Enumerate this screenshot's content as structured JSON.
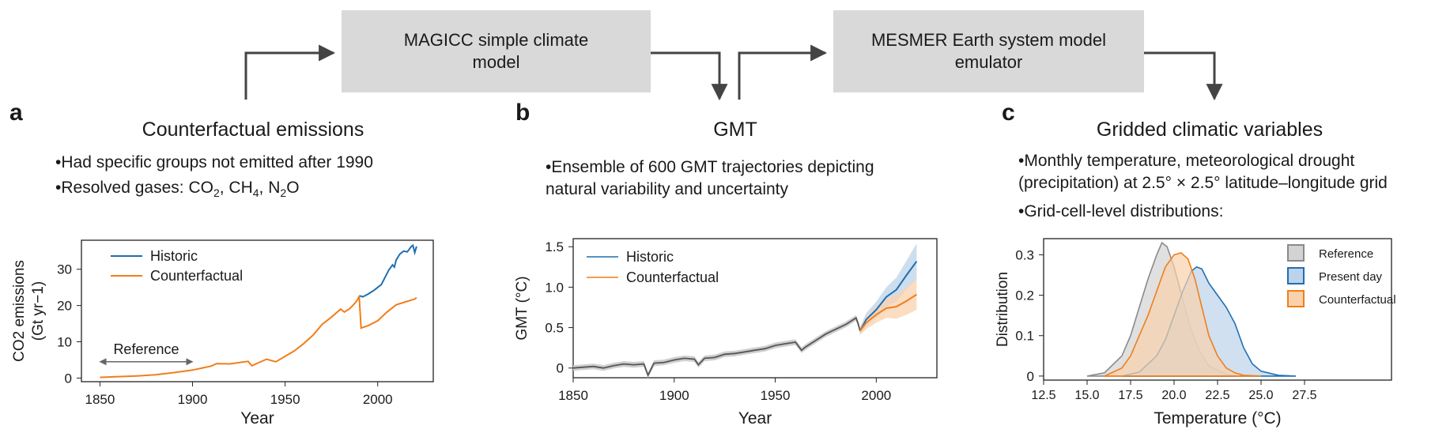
{
  "flow": {
    "box1": [
      "MAGICC simple climate",
      "model"
    ],
    "box2": [
      "MESMER Earth system model",
      "emulator"
    ]
  },
  "panel_a": {
    "letter": "a",
    "title": "Counterfactual emissions",
    "bullet1": "•Had specific groups not emitted after 1990",
    "bullet2_prefix": "•Resolved gases: CO",
    "bullet2_co2_sub": "2",
    "bullet2_mid1": ", CH",
    "bullet2_ch4_sub": "4",
    "bullet2_mid2": ", N",
    "bullet2_n2o_sub": "2",
    "bullet2_suffix": "O"
  },
  "panel_b": {
    "letter": "b",
    "title": "GMT",
    "bullet1": "•Ensemble of 600 GMT trajectories depicting",
    "bullet2": "natural variability and uncertainty"
  },
  "panel_c": {
    "letter": "c",
    "title": "Gridded climatic variables",
    "bullet1": "•Monthly temperature, meteorological drought",
    "bullet2": "(precipitation) at 2.5° × 2.5° latitude–longitude grid",
    "bullet3": "•Grid-cell-level distributions:"
  },
  "colors": {
    "historic": "#1f6fb2",
    "counterfactual": "#f07f1a",
    "reference": "#555555",
    "box": "#d9d9d9"
  },
  "chart_data": [
    {
      "id": "a",
      "type": "line",
      "title": "",
      "xlabel": "Year",
      "ylabel_line1": "CO2 emissions",
      "ylabel_line2": "(Gt yr−1)",
      "xlim": [
        1840,
        2030
      ],
      "ylim": [
        -1,
        38
      ],
      "xticks": [
        1850,
        1900,
        1950,
        2000
      ],
      "yticks": [
        0,
        10,
        20,
        30
      ],
      "annotation": "Reference",
      "reference_span": [
        1850,
        1900
      ],
      "series": [
        {
          "name": "Historic",
          "color": "#1f6fb2",
          "x": [
            1990,
            1992,
            1995,
            1998,
            2000,
            2002,
            2004,
            2006,
            2008,
            2009,
            2010,
            2012,
            2014,
            2016,
            2018,
            2019,
            2020,
            2021
          ],
          "y": [
            22.7,
            22.4,
            23.2,
            24.2,
            25.0,
            25.8,
            27.8,
            29.8,
            31.2,
            30.6,
            32.6,
            34.2,
            35.0,
            34.8,
            36.2,
            36.6,
            34.6,
            36.3
          ]
        },
        {
          "name": "Counterfactual",
          "color": "#f07f1a",
          "x": [
            1850,
            1860,
            1870,
            1880,
            1890,
            1900,
            1910,
            1913,
            1920,
            1930,
            1932,
            1940,
            1945,
            1950,
            1955,
            1960,
            1965,
            1970,
            1975,
            1980,
            1982,
            1985,
            1988,
            1989,
            1990,
            1991,
            1995,
            2000,
            2005,
            2010,
            2015,
            2020,
            2021
          ],
          "y": [
            0.2,
            0.4,
            0.6,
            0.9,
            1.5,
            2.2,
            3.3,
            4.0,
            3.9,
            4.6,
            3.4,
            5.2,
            4.5,
            6.0,
            7.5,
            9.5,
            11.8,
            14.8,
            16.8,
            19.0,
            18.2,
            19.2,
            20.8,
            21.5,
            22.6,
            13.8,
            14.5,
            15.8,
            18.2,
            20.2,
            21.0,
            21.8,
            22.2
          ]
        }
      ]
    },
    {
      "id": "b",
      "type": "line",
      "xlabel": "Year",
      "ylabel": "GMT (°C)",
      "xlim": [
        1850,
        2030
      ],
      "ylim": [
        -0.12,
        1.6
      ],
      "xticks": [
        1850,
        1900,
        1950,
        2000
      ],
      "yticks": [
        0,
        0.5,
        1.0,
        1.5
      ],
      "ytick_labels": [
        "0",
        "0.5",
        "1.0",
        "1.5"
      ],
      "reference": {
        "name": "Reference",
        "color": "#555555",
        "x": [
          1850,
          1855,
          1860,
          1865,
          1870,
          1875,
          1880,
          1885,
          1887,
          1890,
          1895,
          1900,
          1905,
          1910,
          1912,
          1915,
          1920,
          1925,
          1930,
          1935,
          1940,
          1945,
          1950,
          1955,
          1960,
          1963,
          1965,
          1970,
          1975,
          1980,
          1985,
          1990,
          1991,
          1992
        ],
        "y": [
          0.0,
          0.01,
          0.02,
          0.0,
          0.03,
          0.05,
          0.04,
          0.05,
          -0.09,
          0.06,
          0.07,
          0.1,
          0.12,
          0.11,
          0.04,
          0.12,
          0.13,
          0.17,
          0.18,
          0.2,
          0.22,
          0.24,
          0.28,
          0.3,
          0.32,
          0.22,
          0.26,
          0.34,
          0.42,
          0.48,
          0.54,
          0.62,
          0.55,
          0.46
        ]
      },
      "series": [
        {
          "name": "Historic",
          "color": "#1f6fb2",
          "x": [
            1992,
            1995,
            2000,
            2005,
            2010,
            2015,
            2020
          ],
          "y": [
            0.46,
            0.6,
            0.72,
            0.88,
            0.97,
            1.15,
            1.32
          ],
          "band": [
            0.05,
            0.08,
            0.1,
            0.12,
            0.15,
            0.18,
            0.22
          ]
        },
        {
          "name": "Counterfactual",
          "color": "#f07f1a",
          "x": [
            1992,
            1995,
            2000,
            2005,
            2010,
            2015,
            2020
          ],
          "y": [
            0.46,
            0.56,
            0.66,
            0.74,
            0.76,
            0.83,
            0.91
          ],
          "band": [
            0.05,
            0.08,
            0.1,
            0.12,
            0.15,
            0.17,
            0.19
          ]
        }
      ]
    },
    {
      "id": "c",
      "type": "area",
      "xlabel": "Temperature (°C)",
      "ylabel": "Distribution",
      "xlim": [
        12.5,
        32.5
      ],
      "ylim": [
        -0.01,
        0.34
      ],
      "xticks": [
        12.5,
        15.0,
        17.5,
        20.0,
        22.5,
        25.0,
        27.5
      ],
      "xtick_labels": [
        "12.5",
        "15.0",
        "17.5",
        "20.0",
        "22.5",
        "25.0",
        "27.5"
      ],
      "yticks": [
        0,
        0.1,
        0.2,
        0.3
      ],
      "ytick_labels": [
        "0",
        "0.1",
        "0.2",
        "0.3"
      ],
      "legend_position": "top-right",
      "series": [
        {
          "name": "Reference",
          "color": "#8a8a8a",
          "fill": "#d3d3d3",
          "x": [
            15.0,
            16.0,
            17.0,
            17.5,
            18.0,
            18.5,
            19.0,
            19.3,
            19.6,
            20.0,
            20.5,
            21.0,
            21.5,
            22.0,
            23.0,
            23.5
          ],
          "y": [
            0.0,
            0.008,
            0.05,
            0.1,
            0.17,
            0.24,
            0.3,
            0.33,
            0.32,
            0.27,
            0.19,
            0.11,
            0.06,
            0.025,
            0.004,
            0.0
          ]
        },
        {
          "name": "Present day",
          "color": "#1f6fb2",
          "fill": "#bcd3ea",
          "x": [
            17.0,
            18.0,
            19.0,
            19.5,
            20.0,
            20.5,
            21.0,
            21.3,
            21.6,
            22.0,
            22.5,
            23.0,
            23.5,
            24.0,
            24.5,
            25.0,
            26.0,
            27.0
          ],
          "y": [
            0.0,
            0.01,
            0.05,
            0.09,
            0.15,
            0.21,
            0.26,
            0.27,
            0.265,
            0.23,
            0.2,
            0.17,
            0.13,
            0.07,
            0.03,
            0.012,
            0.002,
            0.0
          ]
        },
        {
          "name": "Counterfactual",
          "color": "#f07f1a",
          "fill": "#f9d2ad",
          "x": [
            16.0,
            17.0,
            17.5,
            18.0,
            18.5,
            19.0,
            19.5,
            20.0,
            20.4,
            20.8,
            21.2,
            21.6,
            22.0,
            22.5,
            23.0,
            23.5,
            24.0,
            25.0
          ],
          "y": [
            0.0,
            0.02,
            0.05,
            0.1,
            0.15,
            0.21,
            0.27,
            0.3,
            0.305,
            0.29,
            0.24,
            0.17,
            0.1,
            0.05,
            0.02,
            0.008,
            0.002,
            0.0
          ]
        }
      ]
    }
  ]
}
